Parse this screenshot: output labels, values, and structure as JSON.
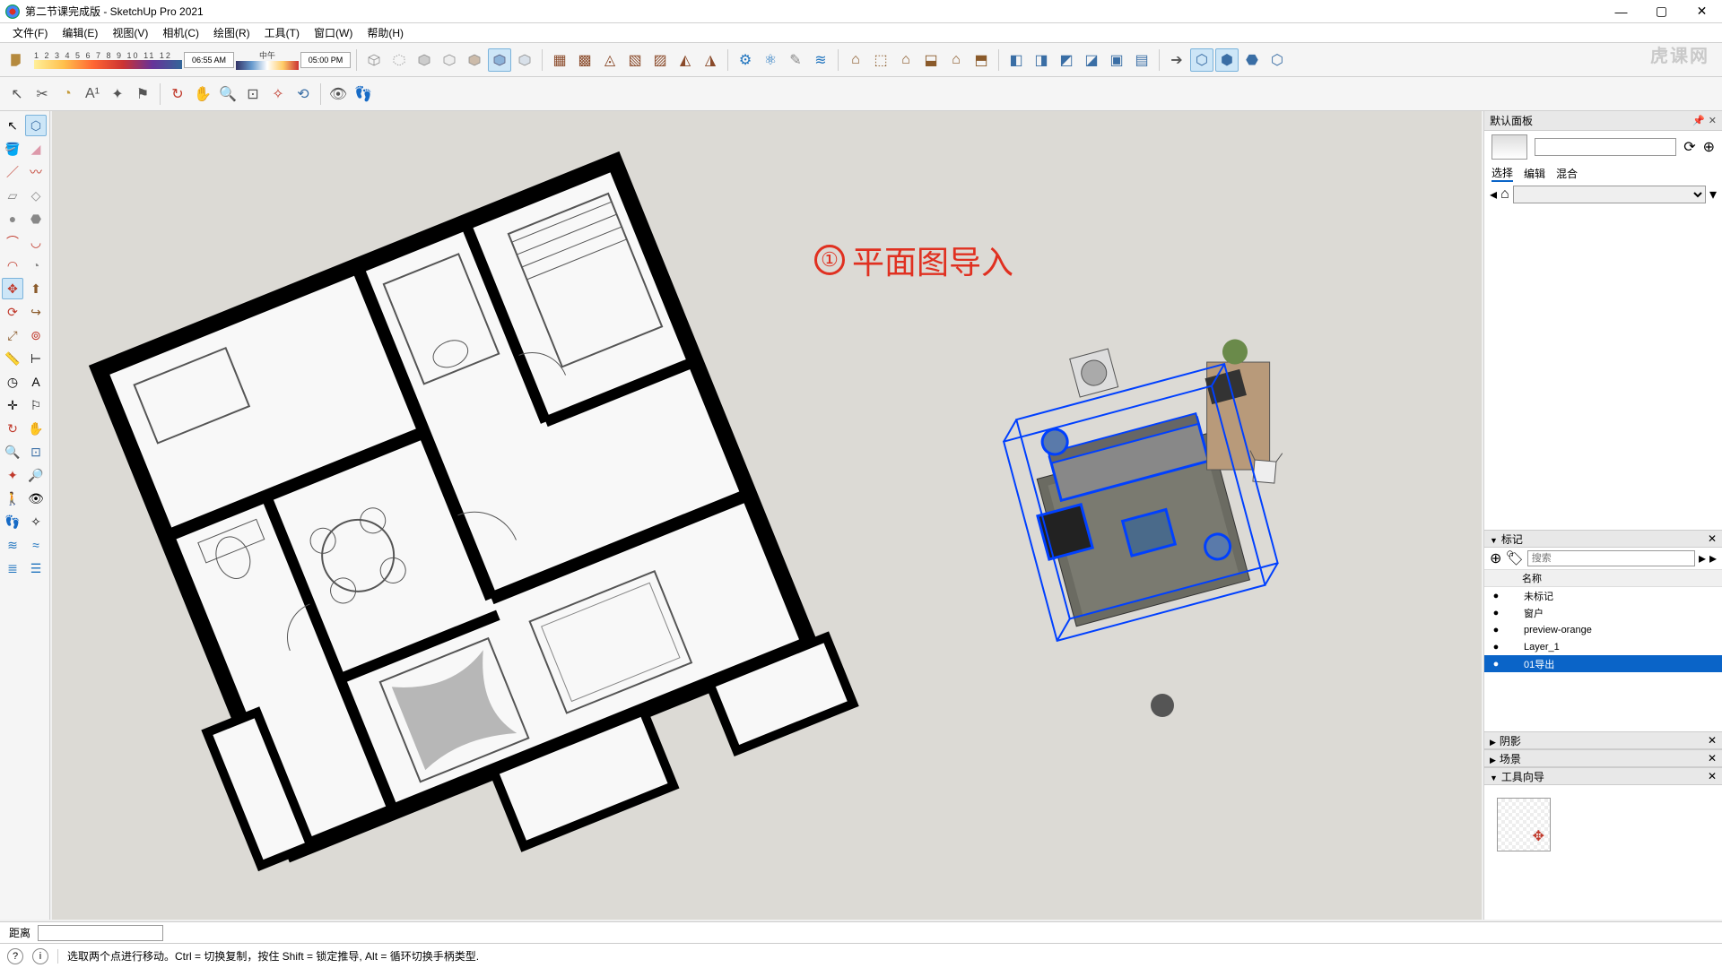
{
  "window": {
    "title": "第二节课完成版 - SketchUp Pro 2021",
    "min": "—",
    "max": "▢",
    "close": "✕"
  },
  "menu": {
    "items": [
      "文件(F)",
      "编辑(E)",
      "视图(V)",
      "相机(C)",
      "绘图(R)",
      "工具(T)",
      "窗口(W)",
      "帮助(H)"
    ]
  },
  "timebar": {
    "ticks": "1  2  3  4  5  6  7  8  9  10  11  12",
    "start": "06:55 AM",
    "mid": "中午",
    "end": "05:00 PM"
  },
  "viewport": {
    "annotation_num": "①",
    "annotation_text": "平面图导入",
    "bg_color": "#dcdad5",
    "selection_color": "#0040ff"
  },
  "right_panel": {
    "header": "默认面板",
    "tabs": [
      "选择",
      "编辑",
      "混合"
    ],
    "tags_title": "标记",
    "tags_search_placeholder": "搜索",
    "tags_col": "名称",
    "tags": [
      {
        "name": "未标记",
        "visible": "●"
      },
      {
        "name": "窗户",
        "visible": "●"
      },
      {
        "name": "preview-orange",
        "visible": "●"
      },
      {
        "name": "Layer_1",
        "visible": "●"
      },
      {
        "name": "01导出",
        "visible": "●",
        "selected": true
      }
    ],
    "shadow_title": "阴影",
    "scene_title": "场景",
    "guide_title": "工具向导"
  },
  "measure": {
    "label": "距离"
  },
  "status": {
    "hint": "选取两个点进行移动。Ctrl = 切换复制，按住 Shift = 锁定推导, Alt = 循环切换手柄类型."
  },
  "watermark": "虎课网",
  "colors": {
    "accent": "#0a64c8",
    "annotation": "#e03020"
  }
}
